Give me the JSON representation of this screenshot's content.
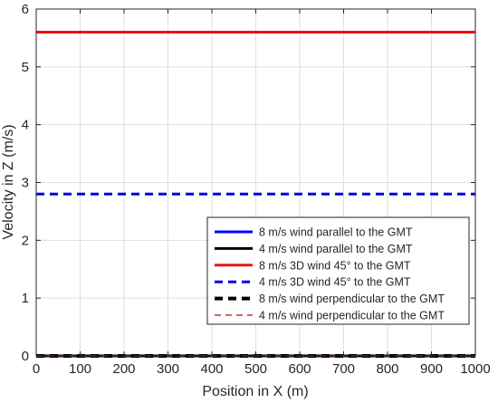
{
  "chart_data": {
    "type": "line",
    "title": "",
    "xlabel": "Position in X (m)",
    "ylabel": "Velocity in Z (m/s)",
    "xlim": [
      0,
      1000
    ],
    "ylim": [
      0,
      6
    ],
    "xticks": [
      0,
      100,
      200,
      300,
      400,
      500,
      600,
      700,
      800,
      900,
      1000
    ],
    "yticks": [
      0,
      1,
      2,
      3,
      4,
      5,
      6
    ],
    "grid": true,
    "legend_position": "lower-right",
    "series": [
      {
        "name": "8 m/s wind parallel to the GMT",
        "x": [
          0,
          1000
        ],
        "y": [
          0.0,
          0.0
        ],
        "color": "#0000ff",
        "style": "solid",
        "width": 3
      },
      {
        "name": "4 m/s wind parallel to the GMT",
        "x": [
          0,
          1000
        ],
        "y": [
          0.0,
          0.0
        ],
        "color": "#000000",
        "style": "solid",
        "width": 3
      },
      {
        "name": "8 m/s 3D wind 45° to the GMT",
        "x": [
          0,
          1000
        ],
        "y": [
          5.6,
          5.6
        ],
        "color": "#ee1111",
        "style": "solid",
        "width": 3
      },
      {
        "name": "4 m/s 3D wind 45° to the GMT",
        "x": [
          0,
          1000
        ],
        "y": [
          2.8,
          2.8
        ],
        "color": "#0000dd",
        "style": "dashed",
        "width": 3
      },
      {
        "name": "8 m/s wind perpendicular to the GMT",
        "x": [
          0,
          1000
        ],
        "y": [
          0.0,
          0.0
        ],
        "color": "#000000",
        "style": "dashed",
        "width": 4
      },
      {
        "name": "4 m/s wind perpendicular to the GMT",
        "x": [
          0,
          1000
        ],
        "y": [
          0.0,
          0.0
        ],
        "color": "#c0392b",
        "style": "dashed",
        "width": 1.5
      }
    ]
  }
}
